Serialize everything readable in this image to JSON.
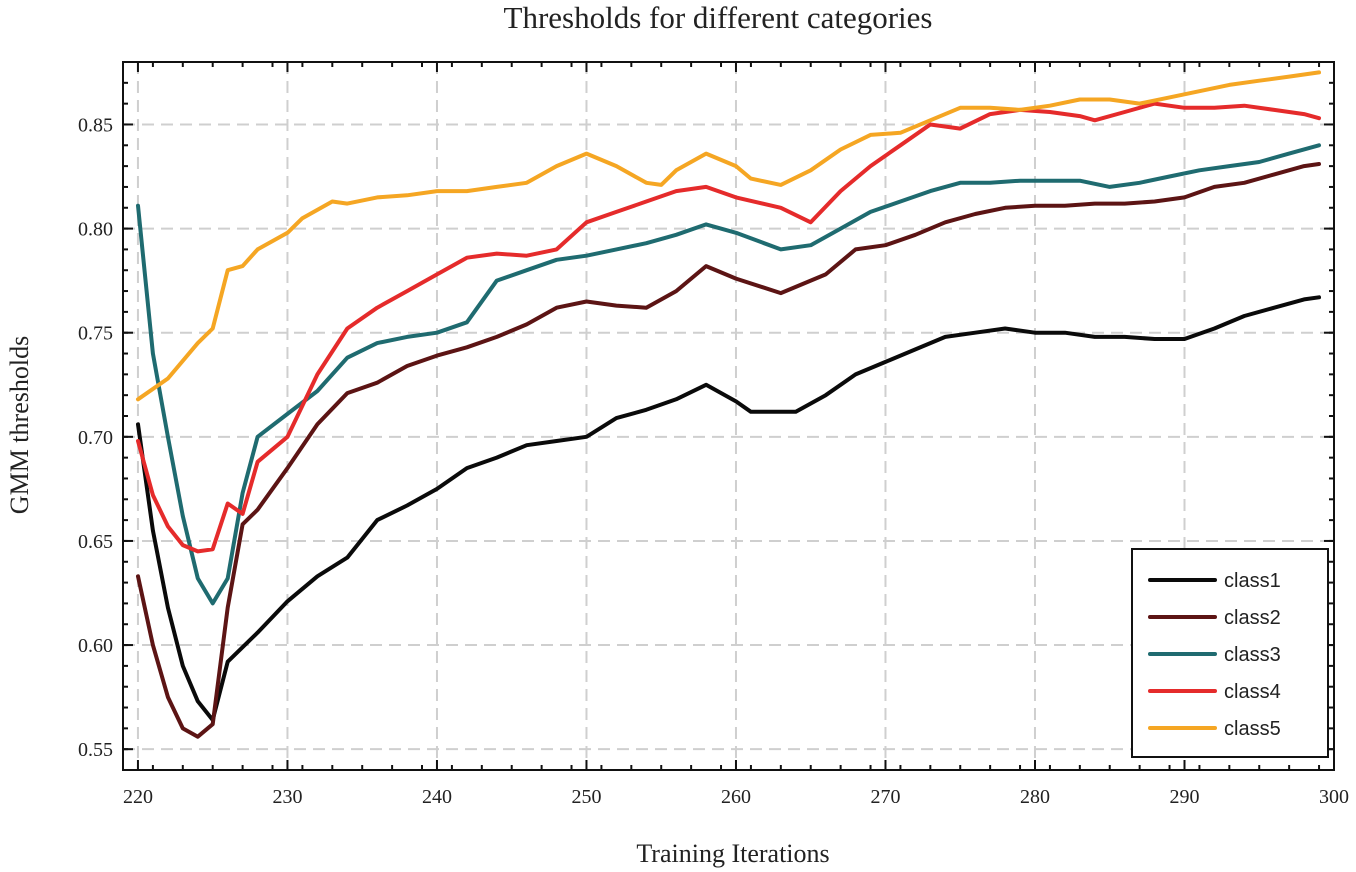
{
  "chart_data": {
    "type": "line",
    "title": "Thresholds for different categories",
    "xlabel": "Training Iterations",
    "ylabel": "GMM thresholds",
    "xlim": [
      219,
      300
    ],
    "ylim": [
      0.54,
      0.88
    ],
    "xticks": [
      220,
      230,
      240,
      250,
      260,
      270,
      280,
      290,
      300
    ],
    "yticks": [
      0.55,
      0.6,
      0.65,
      0.7,
      0.75,
      0.8,
      0.85
    ],
    "ytick_labels": [
      "0.55",
      "0.60",
      "0.65",
      "0.70",
      "0.75",
      "0.80",
      "0.85"
    ],
    "grid": true,
    "legend_position": "bottom-right",
    "series": [
      {
        "name": "class1",
        "color": "#0a0a0a",
        "x": [
          220,
          221,
          222,
          223,
          224,
          225,
          226,
          228,
          230,
          232,
          234,
          236,
          238,
          240,
          242,
          244,
          246,
          248,
          250,
          252,
          254,
          256,
          258,
          260,
          261,
          264,
          266,
          268,
          270,
          272,
          274,
          276,
          278,
          280,
          282,
          284,
          286,
          288,
          290,
          292,
          294,
          296,
          298,
          299
        ],
        "values": [
          0.706,
          0.655,
          0.618,
          0.59,
          0.573,
          0.564,
          0.592,
          0.606,
          0.621,
          0.633,
          0.642,
          0.66,
          0.667,
          0.675,
          0.685,
          0.69,
          0.696,
          0.698,
          0.7,
          0.709,
          0.713,
          0.718,
          0.725,
          0.717,
          0.712,
          0.712,
          0.72,
          0.73,
          0.736,
          0.742,
          0.748,
          0.75,
          0.752,
          0.75,
          0.75,
          0.748,
          0.748,
          0.747,
          0.747,
          0.752,
          0.758,
          0.762,
          0.766,
          0.767
        ]
      },
      {
        "name": "class2",
        "color": "#5c1414",
        "x": [
          220,
          221,
          222,
          223,
          224,
          225,
          226,
          227,
          228,
          230,
          232,
          234,
          236,
          238,
          240,
          242,
          244,
          246,
          248,
          250,
          252,
          254,
          256,
          258,
          260,
          263,
          266,
          268,
          270,
          272,
          274,
          276,
          278,
          280,
          282,
          284,
          286,
          288,
          290,
          292,
          294,
          296,
          298,
          299
        ],
        "values": [
          0.633,
          0.6,
          0.575,
          0.56,
          0.556,
          0.562,
          0.618,
          0.658,
          0.665,
          0.685,
          0.706,
          0.721,
          0.726,
          0.734,
          0.739,
          0.743,
          0.748,
          0.754,
          0.762,
          0.765,
          0.763,
          0.762,
          0.77,
          0.782,
          0.776,
          0.769,
          0.778,
          0.79,
          0.792,
          0.797,
          0.803,
          0.807,
          0.81,
          0.811,
          0.811,
          0.812,
          0.812,
          0.813,
          0.815,
          0.82,
          0.822,
          0.826,
          0.83,
          0.831
        ]
      },
      {
        "name": "class3",
        "color": "#1f6b70",
        "x": [
          220,
          221,
          222,
          223,
          224,
          225,
          226,
          227,
          228,
          230,
          232,
          234,
          236,
          238,
          240,
          242,
          244,
          246,
          248,
          250,
          252,
          254,
          256,
          258,
          260,
          263,
          265,
          267,
          269,
          271,
          273,
          275,
          277,
          279,
          281,
          283,
          285,
          287,
          289,
          291,
          293,
          295,
          297,
          299
        ],
        "values": [
          0.811,
          0.74,
          0.7,
          0.662,
          0.632,
          0.62,
          0.632,
          0.673,
          0.7,
          0.711,
          0.722,
          0.738,
          0.745,
          0.748,
          0.75,
          0.755,
          0.775,
          0.78,
          0.785,
          0.787,
          0.79,
          0.793,
          0.797,
          0.802,
          0.798,
          0.79,
          0.792,
          0.8,
          0.808,
          0.813,
          0.818,
          0.822,
          0.822,
          0.823,
          0.823,
          0.823,
          0.82,
          0.822,
          0.825,
          0.828,
          0.83,
          0.832,
          0.836,
          0.84
        ]
      },
      {
        "name": "class4",
        "color": "#e52b2b",
        "x": [
          220,
          221,
          222,
          223,
          224,
          225,
          226,
          227,
          228,
          230,
          232,
          234,
          236,
          238,
          240,
          242,
          244,
          246,
          248,
          250,
          252,
          254,
          256,
          258,
          260,
          263,
          265,
          267,
          269,
          271,
          273,
          275,
          277,
          279,
          281,
          283,
          284,
          286,
          288,
          290,
          292,
          294,
          296,
          298,
          299
        ],
        "values": [
          0.698,
          0.672,
          0.657,
          0.648,
          0.645,
          0.646,
          0.668,
          0.663,
          0.688,
          0.7,
          0.73,
          0.752,
          0.762,
          0.77,
          0.778,
          0.786,
          0.788,
          0.787,
          0.79,
          0.803,
          0.808,
          0.813,
          0.818,
          0.82,
          0.815,
          0.81,
          0.803,
          0.818,
          0.83,
          0.84,
          0.85,
          0.848,
          0.855,
          0.857,
          0.856,
          0.854,
          0.852,
          0.856,
          0.86,
          0.858,
          0.858,
          0.859,
          0.857,
          0.855,
          0.853
        ]
      },
      {
        "name": "class5",
        "color": "#f5a623",
        "x": [
          220,
          222,
          224,
          225,
          226,
          227,
          228,
          230,
          231,
          233,
          234,
          236,
          238,
          240,
          242,
          244,
          246,
          248,
          250,
          252,
          254,
          255,
          256,
          258,
          260,
          261,
          263,
          265,
          267,
          269,
          271,
          273,
          275,
          277,
          279,
          281,
          283,
          285,
          287,
          289,
          291,
          293,
          295,
          297,
          299
        ],
        "values": [
          0.718,
          0.728,
          0.745,
          0.752,
          0.78,
          0.782,
          0.79,
          0.798,
          0.805,
          0.813,
          0.812,
          0.815,
          0.816,
          0.818,
          0.818,
          0.82,
          0.822,
          0.83,
          0.836,
          0.83,
          0.822,
          0.821,
          0.828,
          0.836,
          0.83,
          0.824,
          0.821,
          0.828,
          0.838,
          0.845,
          0.846,
          0.852,
          0.858,
          0.858,
          0.857,
          0.859,
          0.862,
          0.862,
          0.86,
          0.863,
          0.866,
          0.869,
          0.871,
          0.873,
          0.875
        ]
      }
    ]
  }
}
